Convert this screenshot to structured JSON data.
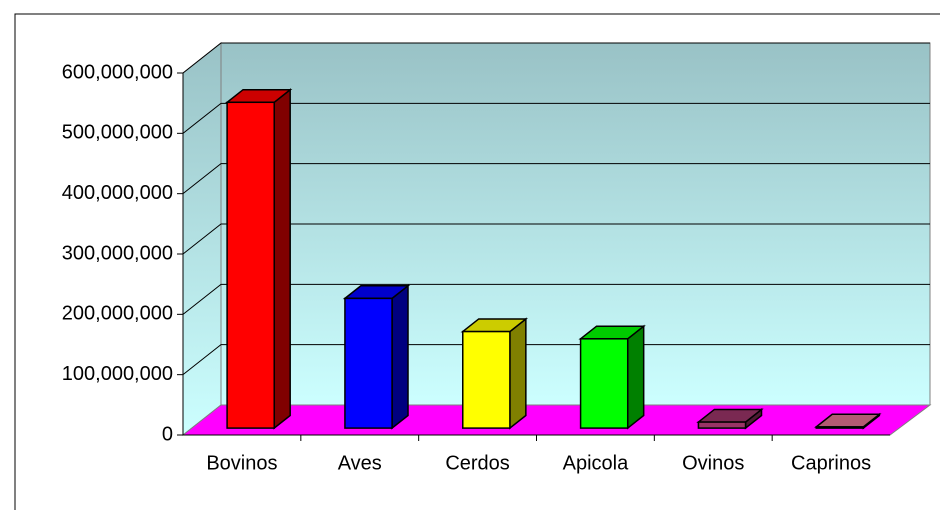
{
  "chart_data": {
    "type": "bar3d",
    "categories": [
      "Bovinos",
      "Aves",
      "Cerdos",
      "Apicola",
      "Ovinos",
      "Caprinos"
    ],
    "values": [
      540000000,
      215000000,
      160000000,
      148000000,
      10000000,
      2000000
    ],
    "colors": [
      "#ff0000",
      "#0000ff",
      "#ffff00",
      "#00ff00",
      "#993366",
      "#e07090"
    ],
    "ylim": [
      0,
      600000000
    ],
    "yticks": [
      0,
      {
        "value": 100000000,
        "label": "100,000,000"
      },
      {
        "value": 200000000,
        "label": "200,000,000"
      },
      {
        "value": 300000000,
        "label": "300,000,000"
      },
      {
        "value": 400000000,
        "label": "400,000,000"
      },
      {
        "value": 500000000,
        "label": "500,000,000"
      },
      {
        "value": 600000000,
        "label": "600,000,000"
      }
    ],
    "grid": true,
    "floor_color": "#ff00ff"
  }
}
